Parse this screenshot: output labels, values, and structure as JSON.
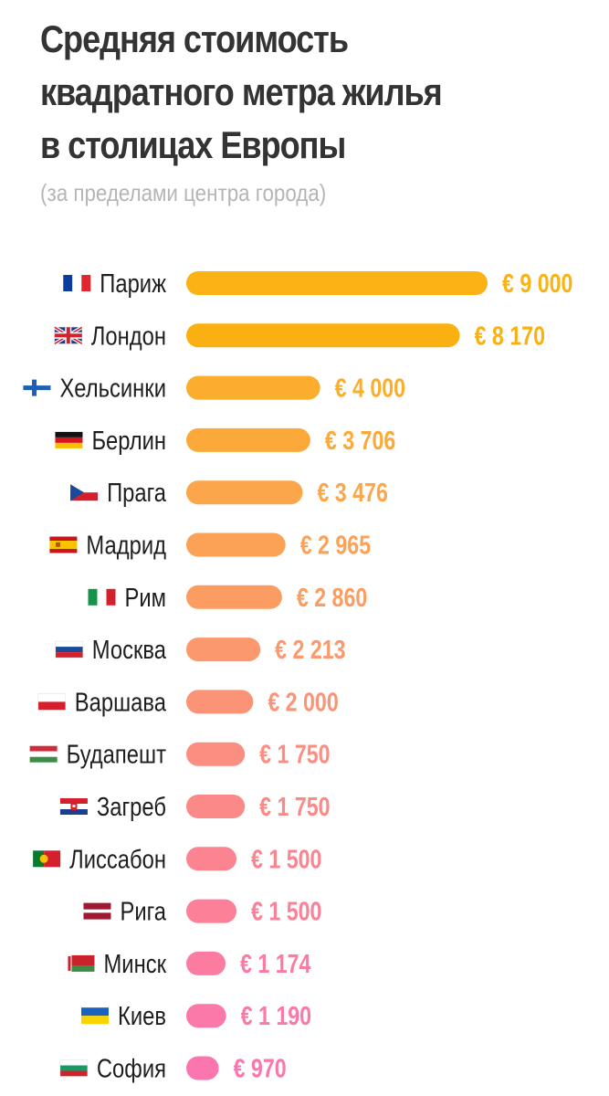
{
  "chart_data": {
    "type": "bar",
    "orientation": "horizontal",
    "title": [
      "Средняя стоимость",
      "квадратного метра жилья",
      "в столицах Европы"
    ],
    "subtitle": "(за пределами центра города)",
    "categories": [
      "Париж",
      "Лондон",
      "Хельсинки",
      "Берлин",
      "Прага",
      "Мадрид",
      "Рим",
      "Москва",
      "Варшава",
      "Будапешт",
      "Загреб",
      "Лиссабон",
      "Рига",
      "Минск",
      "Киев",
      "София"
    ],
    "values": [
      9000,
      8170,
      4000,
      3706,
      3476,
      2965,
      2860,
      2213,
      2000,
      1750,
      1750,
      1500,
      1500,
      1174,
      1190,
      970
    ],
    "value_labels": [
      "€ 9 000",
      "€ 8 170",
      "€ 4 000",
      "€ 3 706",
      "€ 3 476",
      "€ 2 965",
      "€ 2 860",
      "€ 2 213",
      "€ 2 000",
      "€ 1 750",
      "€ 1 750",
      "€ 1 500",
      "€ 1 500",
      "€ 1 174",
      "€ 1 190",
      "€ 970"
    ],
    "flags": [
      "france-flag-icon",
      "uk-flag-icon",
      "finland-flag-icon",
      "germany-flag-icon",
      "czech-flag-icon",
      "spain-flag-icon",
      "italy-flag-icon",
      "russia-flag-icon",
      "poland-flag-icon",
      "hungary-flag-icon",
      "croatia-flag-icon",
      "portugal-flag-icon",
      "latvia-flag-icon",
      "belarus-flag-icon",
      "ukraine-flag-icon",
      "bulgaria-flag-icon"
    ],
    "bar_colors": [
      "#fbb214",
      "#fbb012",
      "#fbad2d",
      "#fbaa3a",
      "#fba64a",
      "#fba257",
      "#fb9d62",
      "#fb986d",
      "#fb9376",
      "#fb8e80",
      "#fb8988",
      "#fb8490",
      "#fb8098",
      "#fb7ca0",
      "#fb79a8",
      "#fb76ae"
    ],
    "legend": "none",
    "grid": false,
    "xlim": [
      0,
      9000
    ]
  }
}
